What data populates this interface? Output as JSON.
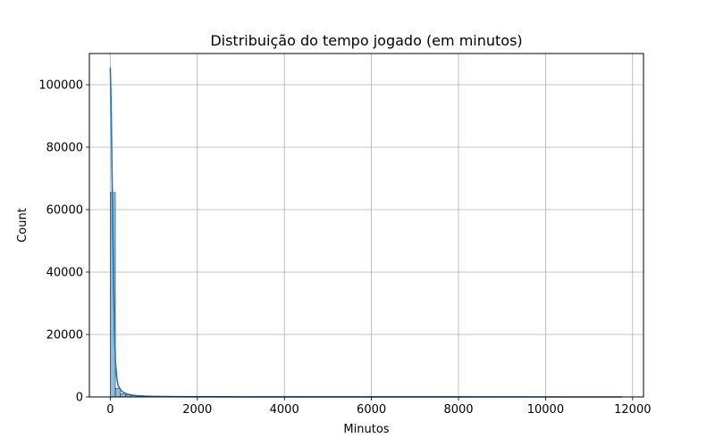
{
  "chart_data": {
    "type": "bar",
    "title": "Distribuição do tempo jogado (em minutos)",
    "xlabel": "Minutos",
    "ylabel": "Count",
    "xlim": [
      -480,
      12250
    ],
    "ylim": [
      0,
      110000
    ],
    "x_ticks": [
      0,
      2000,
      4000,
      6000,
      8000,
      10000,
      12000
    ],
    "y_ticks": [
      0,
      20000,
      40000,
      60000,
      80000,
      100000
    ],
    "grid": true,
    "bin_width": 117,
    "bins": [
      {
        "x0": 0,
        "count": 65500
      },
      {
        "x0": 117,
        "count": 2800
      },
      {
        "x0": 234,
        "count": 1100
      },
      {
        "x0": 351,
        "count": 650
      },
      {
        "x0": 468,
        "count": 420
      },
      {
        "x0": 585,
        "count": 300
      },
      {
        "x0": 702,
        "count": 230
      },
      {
        "x0": 819,
        "count": 180
      },
      {
        "x0": 936,
        "count": 140
      },
      {
        "x0": 1053,
        "count": 110
      },
      {
        "x0": 1170,
        "count": 90
      },
      {
        "x0": 1287,
        "count": 70
      },
      {
        "x0": 1404,
        "count": 60
      },
      {
        "x0": 1521,
        "count": 50
      },
      {
        "x0": 1638,
        "count": 40
      }
    ],
    "kde": {
      "name": "KDE",
      "x": [
        0,
        20,
        40,
        60,
        80,
        100,
        120,
        150,
        180,
        220,
        260,
        300,
        350,
        400,
        500,
        600,
        800,
        1000,
        1500,
        2000,
        3000,
        4000,
        6000,
        8000,
        10000,
        11760
      ],
      "y": [
        105500,
        93000,
        72000,
        52000,
        34000,
        20000,
        11000,
        6000,
        3700,
        2600,
        1900,
        1500,
        1150,
        900,
        600,
        420,
        260,
        180,
        100,
        60,
        30,
        15,
        8,
        5,
        3,
        2
      ]
    },
    "bar_color": "#1f77b4",
    "bar_fill_opacity": 0.5,
    "line_color": "#1f77b4"
  }
}
